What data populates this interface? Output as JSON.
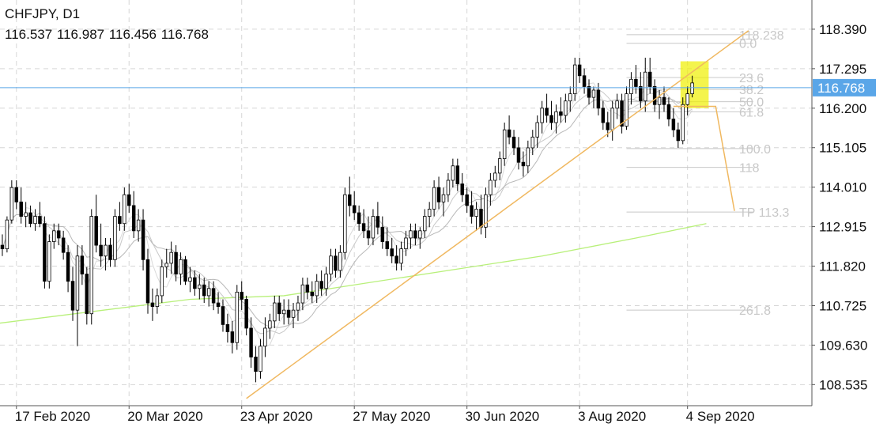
{
  "chart_data": {
    "type": "candlestick",
    "symbol": "CHFJPY, D1",
    "ohlc_text": "116.537 116.987 116.456 116.768",
    "current_price": 116.768,
    "current_price_label": "116.768",
    "ylim": [
      107.95,
      119.2
    ],
    "y_ticks": [
      "118.390",
      "117.295",
      "116.200",
      "115.105",
      "114.010",
      "112.915",
      "111.820",
      "110.725",
      "109.630",
      "108.535"
    ],
    "y_tick_values": [
      118.39,
      117.295,
      116.2,
      115.105,
      114.01,
      112.915,
      111.82,
      110.725,
      109.63,
      108.535
    ],
    "x_ticks": [
      "17 Feb 2020",
      "20 Mar 2020",
      "23 Apr 2020",
      "27 May 2020",
      "30 Jun 2020",
      "3 Aug 2020",
      "4 Sep 2020"
    ],
    "x_tick_bars": [
      3,
      27,
      51,
      75,
      99,
      123,
      146
    ],
    "bars_in_view": 173,
    "candles": [
      [
        112.4,
        112.7,
        112.1,
        112.3
      ],
      [
        112.3,
        113.2,
        112.2,
        113.1
      ],
      [
        113.1,
        114.2,
        113.0,
        114.0
      ],
      [
        114.0,
        114.2,
        113.4,
        113.6
      ],
      [
        113.6,
        114.0,
        113.0,
        113.2
      ],
      [
        113.2,
        113.6,
        112.9,
        113.3
      ],
      [
        113.3,
        113.5,
        112.9,
        113.0
      ],
      [
        113.0,
        113.4,
        112.8,
        113.2
      ],
      [
        113.2,
        113.6,
        112.9,
        113.0
      ],
      [
        113.0,
        113.2,
        111.2,
        111.4
      ],
      [
        111.4,
        112.7,
        111.2,
        112.5
      ],
      [
        112.5,
        113.0,
        112.3,
        112.8
      ],
      [
        112.8,
        113.0,
        112.4,
        112.6
      ],
      [
        112.6,
        112.8,
        112.0,
        112.2
      ],
      [
        112.2,
        112.4,
        111.1,
        111.4
      ],
      [
        111.4,
        111.8,
        110.3,
        110.6
      ],
      [
        110.6,
        112.4,
        109.6,
        112.1
      ],
      [
        112.1,
        112.4,
        111.3,
        111.6
      ],
      [
        111.6,
        111.8,
        110.2,
        110.5
      ],
      [
        110.5,
        113.4,
        110.2,
        113.2
      ],
      [
        113.2,
        113.8,
        112.2,
        112.4
      ],
      [
        112.4,
        113.0,
        111.8,
        112.1
      ],
      [
        112.1,
        112.6,
        111.7,
        112.4
      ],
      [
        112.4,
        112.6,
        111.8,
        112.0
      ],
      [
        112.0,
        113.4,
        111.8,
        113.2
      ],
      [
        113.2,
        113.6,
        112.8,
        113.0
      ],
      [
        113.0,
        114.0,
        112.8,
        113.8
      ],
      [
        113.8,
        114.1,
        113.3,
        113.5
      ],
      [
        113.5,
        113.9,
        112.6,
        112.8
      ],
      [
        112.8,
        113.4,
        112.5,
        113.1
      ],
      [
        113.1,
        113.4,
        111.7,
        112.0
      ],
      [
        112.0,
        112.3,
        110.5,
        110.8
      ],
      [
        110.8,
        111.2,
        110.3,
        110.7
      ],
      [
        110.7,
        111.2,
        110.5,
        111.0
      ],
      [
        111.0,
        112.0,
        110.8,
        111.8
      ],
      [
        111.8,
        112.3,
        111.5,
        111.9
      ],
      [
        111.9,
        112.5,
        111.6,
        112.2
      ],
      [
        112.2,
        112.4,
        111.4,
        111.6
      ],
      [
        111.6,
        112.2,
        111.3,
        112.0
      ],
      [
        112.0,
        112.1,
        111.3,
        111.4
      ],
      [
        111.4,
        111.8,
        111.1,
        111.5
      ],
      [
        111.5,
        111.7,
        111.0,
        111.2
      ],
      [
        111.2,
        111.6,
        110.9,
        111.3
      ],
      [
        111.3,
        111.5,
        110.8,
        111.0
      ],
      [
        111.0,
        111.4,
        110.7,
        111.2
      ],
      [
        111.2,
        111.4,
        110.6,
        110.8
      ],
      [
        110.8,
        111.1,
        110.5,
        110.7
      ],
      [
        110.7,
        110.9,
        110.0,
        110.2
      ],
      [
        110.2,
        110.5,
        109.7,
        110.0
      ],
      [
        110.0,
        110.3,
        109.4,
        109.7
      ],
      [
        109.7,
        111.3,
        109.5,
        111.1
      ],
      [
        111.1,
        111.4,
        110.6,
        110.9
      ],
      [
        110.9,
        111.0,
        109.9,
        110.1
      ],
      [
        110.1,
        110.4,
        109.0,
        109.3
      ],
      [
        109.3,
        109.6,
        108.6,
        108.9
      ],
      [
        108.9,
        109.8,
        108.7,
        109.6
      ],
      [
        109.6,
        110.4,
        109.3,
        110.1
      ],
      [
        110.1,
        110.5,
        109.8,
        110.3
      ],
      [
        110.3,
        111.0,
        110.1,
        110.8
      ],
      [
        110.8,
        111.0,
        110.3,
        110.5
      ],
      [
        110.5,
        110.9,
        110.2,
        110.6
      ],
      [
        110.6,
        110.9,
        110.2,
        110.4
      ],
      [
        110.4,
        110.8,
        110.1,
        110.6
      ],
      [
        110.6,
        111.0,
        110.3,
        110.8
      ],
      [
        110.8,
        111.5,
        110.6,
        111.3
      ],
      [
        111.3,
        111.5,
        110.9,
        111.1
      ],
      [
        111.1,
        111.4,
        110.8,
        111.0
      ],
      [
        111.0,
        111.6,
        110.8,
        111.4
      ],
      [
        111.4,
        111.7,
        111.0,
        111.2
      ],
      [
        111.2,
        111.8,
        111.0,
        111.6
      ],
      [
        111.6,
        112.3,
        111.4,
        112.1
      ],
      [
        112.1,
        112.3,
        111.5,
        111.7
      ],
      [
        111.7,
        112.4,
        111.5,
        112.2
      ],
      [
        112.2,
        114.0,
        112.0,
        113.8
      ],
      [
        113.8,
        114.3,
        113.2,
        113.5
      ],
      [
        113.5,
        113.9,
        113.1,
        113.3
      ],
      [
        113.3,
        113.5,
        112.8,
        113.0
      ],
      [
        113.0,
        113.4,
        112.6,
        112.8
      ],
      [
        112.8,
        113.2,
        112.4,
        112.6
      ],
      [
        112.6,
        113.4,
        112.4,
        113.2
      ],
      [
        113.2,
        113.6,
        112.7,
        112.9
      ],
      [
        112.9,
        113.2,
        112.3,
        112.5
      ],
      [
        112.5,
        112.9,
        112.1,
        112.3
      ],
      [
        112.3,
        112.6,
        111.9,
        112.1
      ],
      [
        112.1,
        112.4,
        111.7,
        111.9
      ],
      [
        111.9,
        112.5,
        111.7,
        112.3
      ],
      [
        112.3,
        112.8,
        112.1,
        112.6
      ],
      [
        112.6,
        113.0,
        112.3,
        112.8
      ],
      [
        112.8,
        113.0,
        112.4,
        112.6
      ],
      [
        112.6,
        112.9,
        112.3,
        112.8
      ],
      [
        112.8,
        113.4,
        112.6,
        113.2
      ],
      [
        113.2,
        113.6,
        112.9,
        113.4
      ],
      [
        113.4,
        114.2,
        113.2,
        114.0
      ],
      [
        114.0,
        114.3,
        113.4,
        113.6
      ],
      [
        113.6,
        114.0,
        113.2,
        113.8
      ],
      [
        113.8,
        114.4,
        113.6,
        114.2
      ],
      [
        114.2,
        114.8,
        114.0,
        114.6
      ],
      [
        114.6,
        114.8,
        113.9,
        114.1
      ],
      [
        114.1,
        114.4,
        113.6,
        113.8
      ],
      [
        113.8,
        114.0,
        113.3,
        113.5
      ],
      [
        113.5,
        113.9,
        113.0,
        113.2
      ],
      [
        113.2,
        113.6,
        112.8,
        113.4
      ],
      [
        113.4,
        113.8,
        112.7,
        112.9
      ],
      [
        112.9,
        114.0,
        112.6,
        113.8
      ],
      [
        113.8,
        114.4,
        113.5,
        114.2
      ],
      [
        114.2,
        114.6,
        114.0,
        114.4
      ],
      [
        114.4,
        115.0,
        114.2,
        114.8
      ],
      [
        114.8,
        115.8,
        114.6,
        115.6
      ],
      [
        115.6,
        116.0,
        115.2,
        115.4
      ],
      [
        115.4,
        115.6,
        114.9,
        115.1
      ],
      [
        115.1,
        115.4,
        114.5,
        114.7
      ],
      [
        114.7,
        115.0,
        114.3,
        114.6
      ],
      [
        114.6,
        115.3,
        114.4,
        115.1
      ],
      [
        115.1,
        115.6,
        114.9,
        115.4
      ],
      [
        115.4,
        116.0,
        115.1,
        115.8
      ],
      [
        115.8,
        116.4,
        115.5,
        116.2
      ],
      [
        116.2,
        116.6,
        115.8,
        116.0
      ],
      [
        116.0,
        116.4,
        115.6,
        115.8
      ],
      [
        115.8,
        116.3,
        115.5,
        116.1
      ],
      [
        116.1,
        116.5,
        115.8,
        116.0
      ],
      [
        116.0,
        116.6,
        115.8,
        116.4
      ],
      [
        116.4,
        116.8,
        116.1,
        116.6
      ],
      [
        116.6,
        117.6,
        116.4,
        117.4
      ],
      [
        117.4,
        117.6,
        116.9,
        117.1
      ],
      [
        117.1,
        117.3,
        116.6,
        116.8
      ],
      [
        116.8,
        117.0,
        116.3,
        116.5
      ],
      [
        116.5,
        116.8,
        116.2,
        116.7
      ],
      [
        116.7,
        116.9,
        116.0,
        116.2
      ],
      [
        116.2,
        116.4,
        115.6,
        115.8
      ],
      [
        115.8,
        116.1,
        115.4,
        115.6
      ],
      [
        115.6,
        116.4,
        115.3,
        116.2
      ],
      [
        116.2,
        116.6,
        115.9,
        116.4
      ],
      [
        116.4,
        116.6,
        115.5,
        115.7
      ],
      [
        115.7,
        116.8,
        115.6,
        116.6
      ],
      [
        116.6,
        117.2,
        116.3,
        117.0
      ],
      [
        117.0,
        117.4,
        116.6,
        116.8
      ],
      [
        116.8,
        117.2,
        116.2,
        116.4
      ],
      [
        116.4,
        117.6,
        116.1,
        117.2
      ],
      [
        117.2,
        117.6,
        116.6,
        116.8
      ],
      [
        116.8,
        117.0,
        116.1,
        116.3
      ],
      [
        116.3,
        116.7,
        115.9,
        116.5
      ],
      [
        116.5,
        116.8,
        116.1,
        116.3
      ],
      [
        116.3,
        116.5,
        115.7,
        115.9
      ],
      [
        115.9,
        116.2,
        115.4,
        115.6
      ],
      [
        115.6,
        115.8,
        115.1,
        115.3
      ],
      [
        115.3,
        116.5,
        115.2,
        116.3
      ],
      [
        116.3,
        116.8,
        116.0,
        116.6
      ],
      [
        116.6,
        117.1,
        116.5,
        116.9
      ]
    ],
    "wma_lines": [
      {
        "name": "",
        "color": "#d9d9d9"
      },
      {
        "name": "",
        "color": "#c8c8c8"
      },
      {
        "name": "",
        "color": "#b8b8b8"
      }
    ],
    "long_ma": {
      "color": "#b8f07a",
      "points": [
        [
          -3,
          110.2
        ],
        [
          40,
          110.9
        ],
        [
          60,
          111.0
        ],
        [
          75,
          111.3
        ],
        [
          95,
          111.7
        ],
        [
          115,
          112.1
        ],
        [
          135,
          112.6
        ],
        [
          150,
          113.0
        ]
      ]
    },
    "trendline": {
      "color": "#f0b860",
      "points": [
        [
          52,
          108.15
        ],
        [
          159,
          118.35
        ]
      ]
    },
    "fibonacci": {
      "start_bar": 133,
      "end_bar": 160,
      "label_bar": 157,
      "color": "#c8c8c8",
      "levels": [
        {
          "label": "118.238",
          "price": 118.238
        },
        {
          "label": "0.0",
          "price": 118.0
        },
        {
          "label": "23.6",
          "price": 117.05
        },
        {
          "label": "38.2",
          "price": 116.72
        },
        {
          "label": "50.0",
          "price": 116.38
        },
        {
          "label": "61.8",
          "price": 116.1
        },
        {
          "label": "100.0",
          "price": 115.08
        },
        {
          "label": "118",
          "price": 114.56
        },
        {
          "label": "TP 113.3",
          "price": 113.32
        },
        {
          "label": "261.8",
          "price": 110.6
        }
      ]
    },
    "highlight_box": {
      "color": "#f0f000",
      "bars": [
        144.5,
        150.5
      ],
      "price_range": [
        116.2,
        117.5
      ]
    },
    "projection_path": {
      "color": "#f0b860",
      "points": [
        [
          143,
          116.25
        ],
        [
          152,
          116.25
        ],
        [
          156,
          113.35
        ]
      ]
    },
    "colors": {
      "bull": "#ffffff",
      "bear": "#000000",
      "outline": "#000000",
      "grid": "#d6d6d6",
      "price_line": "#5aa6e8",
      "price_tag": "#5aa6e8",
      "price_tag_text": "#ffffff"
    }
  }
}
